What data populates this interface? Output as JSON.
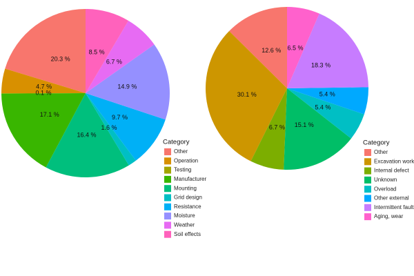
{
  "chart_data": [
    {
      "type": "pie",
      "legend_title": "Category",
      "categories": [
        "Other",
        "Operation",
        "Testing",
        "Manufacturer",
        "Mounting",
        "Grid design",
        "Resistance",
        "Moisture",
        "Weather",
        "Soil effects"
      ],
      "values": [
        20.3,
        4.7,
        0.1,
        17.1,
        16.4,
        1.6,
        9.7,
        14.9,
        6.7,
        8.5
      ],
      "value_labels": [
        "20.3 %",
        "4.7 %",
        "0.1 %",
        "17.1 %",
        "16.4 %",
        "1.6 %",
        "9.7 %",
        "14.9 %",
        "6.7 %",
        "8.5 %"
      ],
      "colors": [
        "#F8766D",
        "#D89000",
        "#A3A500",
        "#39B600",
        "#00BF7D",
        "#00BFC4",
        "#00B0F6",
        "#9590FF",
        "#E76BF3",
        "#FF62BC"
      ]
    },
    {
      "type": "pie",
      "legend_title": "Category",
      "categories": [
        "Other",
        "Excavation work",
        "Internal defect",
        "Unknown",
        "Overload",
        "Other external",
        "Intermittent faults",
        "Aging, wear"
      ],
      "values": [
        12.6,
        30.1,
        6.7,
        15.1,
        5.4,
        5.4,
        18.3,
        6.5
      ],
      "value_labels": [
        "12.6 %",
        "30.1 %",
        "6.7 %",
        "15.1 %",
        "5.4 %",
        "5.4 %",
        "18.3 %",
        "6.5 %"
      ],
      "colors": [
        "#F8766D",
        "#CD9600",
        "#7CAE00",
        "#00BE67",
        "#00BFC4",
        "#00A9FF",
        "#C77CFF",
        "#FF61CC"
      ]
    }
  ]
}
